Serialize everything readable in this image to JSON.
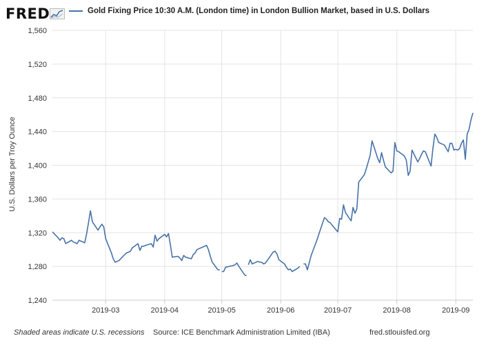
{
  "branding": {
    "logo": "FRED",
    "logo_icon": "line-chart-icon"
  },
  "colors": {
    "series": "#4572a7",
    "grid": "#e3e3e3",
    "axis": "#cccccc",
    "text": "#333333"
  },
  "footer": {
    "recession_note": "Shaded areas indicate U.S. recessions",
    "source": "Source: ICE Benchmark Administration Limited (IBA)",
    "url": "fred.stlouisfed.org"
  },
  "chart_data": {
    "type": "line",
    "title": "",
    "ylabel": "U.S. Dollars per Troy Ounce",
    "xlabel": "",
    "ylim": [
      1240,
      1560
    ],
    "yticks": [
      1240,
      1280,
      1320,
      1360,
      1400,
      1440,
      1480,
      1520,
      1560
    ],
    "ytick_labels": [
      "1,240",
      "1,280",
      "1,320",
      "1,360",
      "1,400",
      "1,440",
      "1,480",
      "1,520",
      "1,560"
    ],
    "xlim": [
      "2019-02-01",
      "2019-09-10"
    ],
    "xticks": [
      "2019-03-01",
      "2019-04-01",
      "2019-05-01",
      "2019-06-01",
      "2019-07-01",
      "2019-08-01",
      "2019-09-01"
    ],
    "xtick_labels": [
      "2019-03",
      "2019-04",
      "2019-05",
      "2019-06",
      "2019-07",
      "2019-08",
      "2019-09"
    ],
    "grid": true,
    "legend": "top",
    "series": [
      {
        "name": "Gold Fixing Price 10:30 A.M. (London time) in London Bullion Market, based in U.S. Dollars",
        "points": [
          [
            "2019-02-01",
            1321
          ],
          [
            "2019-02-04",
            1314
          ],
          [
            "2019-02-05",
            1311
          ],
          [
            "2019-02-06",
            1314
          ],
          [
            "2019-02-07",
            1313
          ],
          [
            "2019-02-08",
            1307
          ],
          [
            "2019-02-11",
            1311
          ],
          [
            "2019-02-12",
            1309
          ],
          [
            "2019-02-13",
            1308
          ],
          [
            "2019-02-14",
            1307
          ],
          [
            "2019-02-15",
            1311
          ],
          [
            "2019-02-18",
            1308
          ],
          [
            "2019-02-19",
            1319
          ],
          [
            "2019-02-20",
            1332
          ],
          [
            "2019-02-21",
            1346
          ],
          [
            "2019-02-22",
            1333
          ],
          [
            "2019-02-25",
            1323
          ],
          [
            "2019-02-26",
            1327
          ],
          [
            "2019-02-27",
            1330
          ],
          [
            "2019-02-28",
            1327
          ],
          [
            "2019-03-01",
            1313
          ],
          [
            "2019-03-04",
            1296
          ],
          [
            "2019-03-05",
            1289
          ],
          [
            "2019-03-06",
            1285
          ],
          [
            "2019-03-07",
            1286
          ],
          [
            "2019-03-08",
            1287
          ],
          [
            "2019-03-11",
            1294
          ],
          [
            "2019-03-12",
            1296
          ],
          [
            "2019-03-13",
            1297
          ],
          [
            "2019-03-14",
            1298
          ],
          [
            "2019-03-15",
            1302
          ],
          [
            "2019-03-18",
            1307
          ],
          [
            "2019-03-19",
            1299
          ],
          [
            "2019-03-20",
            1304
          ],
          [
            "2019-03-21",
            1304
          ],
          [
            "2019-03-22",
            1305
          ],
          [
            "2019-03-25",
            1307
          ],
          [
            "2019-03-26",
            1303
          ],
          [
            "2019-03-27",
            1317
          ],
          [
            "2019-03-28",
            1310
          ],
          [
            "2019-03-29",
            1313
          ],
          [
            "2019-04-01",
            1318
          ],
          [
            "2019-04-02",
            1315
          ],
          [
            "2019-04-03",
            1319
          ],
          [
            "2019-04-04",
            1306
          ],
          [
            "2019-04-05",
            1291
          ],
          [
            "2019-04-08",
            1292
          ],
          [
            "2019-04-09",
            1290
          ],
          [
            "2019-04-10",
            1287
          ],
          [
            "2019-04-11",
            1293
          ],
          [
            "2019-04-12",
            1291
          ],
          [
            "2019-04-15",
            1289
          ],
          [
            "2019-04-16",
            1294
          ],
          [
            "2019-04-17",
            1296
          ],
          [
            "2019-04-18",
            1300
          ],
          [
            "2019-04-23",
            1305
          ],
          [
            "2019-04-24",
            1300
          ],
          [
            "2019-04-25",
            1292
          ],
          [
            "2019-04-26",
            1285
          ],
          [
            "2019-04-29",
            1276
          ],
          [
            "2019-04-30",
            1276
          ],
          null,
          [
            "2019-05-01",
            1274
          ],
          [
            "2019-05-02",
            1274
          ],
          [
            "2019-05-03",
            1279
          ],
          [
            "2019-05-07",
            1281
          ],
          [
            "2019-05-08",
            1282
          ],
          [
            "2019-05-09",
            1284
          ],
          [
            "2019-05-10",
            1280
          ],
          [
            "2019-05-13",
            1270
          ],
          [
            "2019-05-14",
            1269
          ],
          null,
          [
            "2019-05-15",
            1282
          ],
          [
            "2019-05-16",
            1288
          ],
          [
            "2019-05-17",
            1283
          ],
          [
            "2019-05-20",
            1286
          ],
          [
            "2019-05-21",
            1285
          ],
          [
            "2019-05-22",
            1285
          ],
          [
            "2019-05-23",
            1283
          ],
          [
            "2019-05-24",
            1284
          ],
          [
            "2019-05-28",
            1297
          ],
          [
            "2019-05-29",
            1298
          ],
          [
            "2019-05-30",
            1295
          ],
          [
            "2019-05-31",
            1288
          ],
          [
            "2019-06-03",
            1283
          ],
          [
            "2019-06-04",
            1279
          ],
          [
            "2019-06-05",
            1276
          ],
          [
            "2019-06-06",
            1277
          ],
          [
            "2019-06-07",
            1274
          ],
          [
            "2019-06-10",
            1278
          ],
          [
            "2019-06-11",
            1280
          ],
          null,
          [
            "2019-06-13",
            1283
          ],
          [
            "2019-06-14",
            1283
          ],
          [
            "2019-06-15",
            1276
          ],
          [
            "2019-06-17",
            1293
          ],
          [
            "2019-06-18",
            1299
          ],
          [
            "2019-06-19",
            1305
          ],
          [
            "2019-06-20",
            1311
          ],
          [
            "2019-06-21",
            1318
          ],
          [
            "2019-06-24",
            1338
          ],
          [
            "2019-06-25",
            1336
          ],
          [
            "2019-06-26",
            1333
          ],
          [
            "2019-06-27",
            1332
          ],
          [
            "2019-06-28",
            1329
          ],
          [
            "2019-07-01",
            1321
          ],
          [
            "2019-07-02",
            1337
          ],
          [
            "2019-07-03",
            1336
          ],
          [
            "2019-07-04",
            1353
          ],
          [
            "2019-07-05",
            1344
          ],
          [
            "2019-07-08",
            1334
          ],
          [
            "2019-07-09",
            1350
          ],
          [
            "2019-07-10",
            1343
          ],
          [
            "2019-07-11",
            1348
          ],
          [
            "2019-07-12",
            1380
          ],
          [
            "2019-07-15",
            1389
          ],
          [
            "2019-07-16",
            1396
          ],
          [
            "2019-07-17",
            1404
          ],
          [
            "2019-07-18",
            1412
          ],
          [
            "2019-07-19",
            1429
          ],
          [
            "2019-07-22",
            1408
          ],
          [
            "2019-07-23",
            1403
          ],
          [
            "2019-07-24",
            1415
          ],
          [
            "2019-07-25",
            1406
          ],
          [
            "2019-07-26",
            1398
          ],
          [
            "2019-07-29",
            1391
          ],
          [
            "2019-07-30",
            1393
          ],
          [
            "2019-07-31",
            1427
          ],
          [
            "2019-08-01",
            1417
          ],
          [
            "2019-08-02",
            1416
          ],
          [
            "2019-08-05",
            1411
          ],
          [
            "2019-08-06",
            1406
          ],
          [
            "2019-08-07",
            1388
          ],
          [
            "2019-08-08",
            1393
          ],
          [
            "2019-08-09",
            1418
          ],
          [
            "2019-08-12",
            1404
          ],
          [
            "2019-08-13",
            1408
          ],
          [
            "2019-08-14",
            1413
          ],
          [
            "2019-08-15",
            1417
          ],
          [
            "2019-08-16",
            1416
          ],
          [
            "2019-08-19",
            1399
          ],
          [
            "2019-08-20",
            1420
          ],
          [
            "2019-08-21",
            1437
          ],
          [
            "2019-08-22",
            1433
          ],
          [
            "2019-08-23",
            1427
          ],
          [
            "2019-08-26",
            1424
          ],
          [
            "2019-08-27",
            1420
          ],
          [
            "2019-08-28",
            1416
          ],
          [
            "2019-08-29",
            1426
          ],
          [
            "2019-08-30",
            1426
          ],
          [
            "2019-08-31",
            1418
          ],
          [
            "2019-09-01",
            1419
          ],
          [
            "2019-09-02",
            1418
          ],
          [
            "2019-09-03",
            1420
          ],
          [
            "2019-09-04",
            1426
          ],
          [
            "2019-09-05",
            1430
          ],
          [
            "2019-09-06",
            1407
          ],
          [
            "2019-09-07",
            1437
          ],
          [
            "2019-09-08",
            1443
          ],
          [
            "2019-09-09",
            1454
          ],
          [
            "2019-09-10",
            1462
          ]
        ]
      }
    ]
  }
}
